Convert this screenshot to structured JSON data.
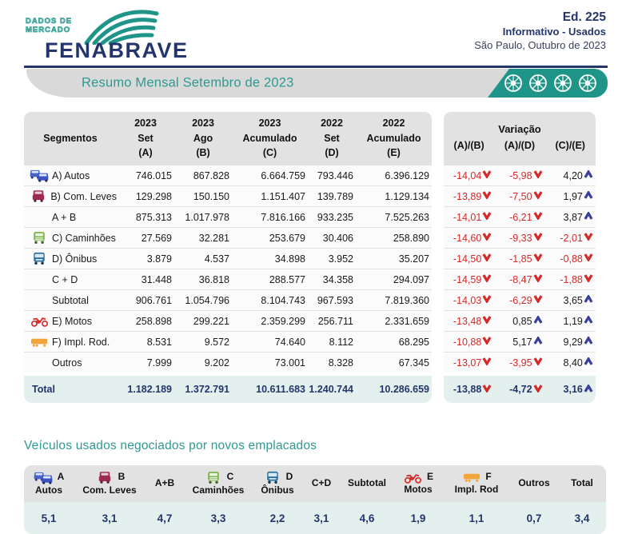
{
  "header": {
    "tagline_line1": "DADOS DE",
    "tagline_line2": "MERCADO",
    "brand": "FENABRAVE",
    "edition": "Ed. 225",
    "subtitle": "Informativo - Usados",
    "location_date": "São Paulo, Outubro de 2023"
  },
  "title_bar": {
    "title": "Resumo Mensal Setembro de 2023",
    "wheel_icons": [
      "wheel-icon",
      "wheel-icon",
      "wheel-icon",
      "wheel-icon"
    ]
  },
  "colors": {
    "navy": "#24356b",
    "teal": "#1f958a",
    "negative_red": "#d42a2a",
    "arrow_up_blue": "#3a3f9e",
    "header_grey": "#e2e2e2",
    "total_row_bg": "#e4f0ee"
  },
  "main_table": {
    "segments_header": "Segmentos",
    "columns": [
      {
        "year": "2023",
        "period": "Set",
        "key": "(A)"
      },
      {
        "year": "2023",
        "period": "Ago",
        "key": "(B)"
      },
      {
        "year": "2023",
        "period": "Acumulado",
        "key": "(C)"
      },
      {
        "year": "2022",
        "period": "Set",
        "key": "(D)"
      },
      {
        "year": "2022",
        "period": "Acumulado",
        "key": "(E)"
      }
    ],
    "rows": [
      {
        "icon": "autos-icon",
        "label": "A) Autos",
        "values": [
          "746.015",
          "867.828",
          "6.664.759",
          "793.446",
          "6.396.129"
        ]
      },
      {
        "icon": "com-leves-icon",
        "label": "B) Com. Leves",
        "values": [
          "129.298",
          "150.150",
          "1.151.407",
          "139.789",
          "1.129.134"
        ]
      },
      {
        "icon": null,
        "label": "A + B",
        "values": [
          "875.313",
          "1.017.978",
          "7.816.166",
          "933.235",
          "7.525.263"
        ]
      },
      {
        "icon": "caminhoes-icon",
        "label": "C) Caminhões",
        "values": [
          "27.569",
          "32.281",
          "253.679",
          "30.406",
          "258.890"
        ]
      },
      {
        "icon": "onibus-icon",
        "label": "D) Ônibus",
        "values": [
          "3.879",
          "4.537",
          "34.898",
          "3.952",
          "35.207"
        ]
      },
      {
        "icon": null,
        "label": "C + D",
        "values": [
          "31.448",
          "36.818",
          "288.577",
          "34.358",
          "294.097"
        ]
      },
      {
        "icon": null,
        "label": "Subtotal",
        "values": [
          "906.761",
          "1.054.796",
          "8.104.743",
          "967.593",
          "7.819.360"
        ]
      },
      {
        "icon": "motos-icon",
        "label": "E) Motos",
        "values": [
          "258.898",
          "299.221",
          "2.359.299",
          "256.711",
          "2.331.659"
        ]
      },
      {
        "icon": "impl-rod-icon",
        "label": "F) Impl. Rod.",
        "values": [
          "8.531",
          "9.572",
          "74.640",
          "8.112",
          "68.295"
        ]
      },
      {
        "icon": null,
        "label": "Outros",
        "values": [
          "7.999",
          "9.202",
          "73.001",
          "8.328",
          "67.345"
        ]
      }
    ],
    "total_row": {
      "label": "Total",
      "values": [
        "1.182.189",
        "1.372.791",
        "10.611.683",
        "1.240.744",
        "10.286.659"
      ]
    }
  },
  "variation_table": {
    "title": "Variação",
    "columns": [
      "(A)/(B)",
      "(A)/(D)",
      "(C)/(E)"
    ],
    "rows": [
      [
        {
          "value": "-14,04",
          "trend": "down"
        },
        {
          "value": "-5,98",
          "trend": "down"
        },
        {
          "value": "4,20",
          "trend": "up"
        }
      ],
      [
        {
          "value": "-13,89",
          "trend": "down"
        },
        {
          "value": "-7,50",
          "trend": "down"
        },
        {
          "value": "1,97",
          "trend": "up"
        }
      ],
      [
        {
          "value": "-14,01",
          "trend": "down"
        },
        {
          "value": "-6,21",
          "trend": "down"
        },
        {
          "value": "3,87",
          "trend": "up"
        }
      ],
      [
        {
          "value": "-14,60",
          "trend": "down"
        },
        {
          "value": "-9,33",
          "trend": "down"
        },
        {
          "value": "-2,01",
          "trend": "down"
        }
      ],
      [
        {
          "value": "-14,50",
          "trend": "down"
        },
        {
          "value": "-1,85",
          "trend": "down"
        },
        {
          "value": "-0,88",
          "trend": "down"
        }
      ],
      [
        {
          "value": "-14,59",
          "trend": "down"
        },
        {
          "value": "-8,47",
          "trend": "down"
        },
        {
          "value": "-1,88",
          "trend": "down"
        }
      ],
      [
        {
          "value": "-14,03",
          "trend": "down"
        },
        {
          "value": "-6,29",
          "trend": "down"
        },
        {
          "value": "3,65",
          "trend": "up"
        }
      ],
      [
        {
          "value": "-13,48",
          "trend": "down"
        },
        {
          "value": "0,85",
          "trend": "up"
        },
        {
          "value": "1,19",
          "trend": "up"
        }
      ],
      [
        {
          "value": "-10,88",
          "trend": "down"
        },
        {
          "value": "5,17",
          "trend": "up"
        },
        {
          "value": "9,29",
          "trend": "up"
        }
      ],
      [
        {
          "value": "-13,07",
          "trend": "down"
        },
        {
          "value": "-3,95",
          "trend": "down"
        },
        {
          "value": "8,40",
          "trend": "up"
        }
      ]
    ],
    "total_row": [
      {
        "value": "-13,88",
        "trend": "down"
      },
      {
        "value": "-4,72",
        "trend": "down"
      },
      {
        "value": "3,16",
        "trend": "up"
      }
    ]
  },
  "ratio_table": {
    "section_title": "Veículos usados negociados por novos emplacados",
    "columns": [
      {
        "icon": "autos-icon",
        "letter": "A",
        "name": "Autos",
        "value": "5,1"
      },
      {
        "icon": "com-leves-icon",
        "letter": "B",
        "name": "Com. Leves",
        "value": "3,1"
      },
      {
        "icon": null,
        "letter": null,
        "name": "A+B",
        "value": "4,7"
      },
      {
        "icon": "caminhoes-icon",
        "letter": "C",
        "name": "Caminhões",
        "value": "3,3"
      },
      {
        "icon": "onibus-icon",
        "letter": "D",
        "name": "Ônibus",
        "value": "2,2"
      },
      {
        "icon": null,
        "letter": null,
        "name": "C+D",
        "value": "3,1"
      },
      {
        "icon": null,
        "letter": null,
        "name": "Subtotal",
        "value": "4,6"
      },
      {
        "icon": "motos-icon",
        "letter": "E",
        "name": "Motos",
        "value": "1,9"
      },
      {
        "icon": "impl-rod-icon",
        "letter": "F",
        "name": "Impl. Rod",
        "value": "1,1"
      },
      {
        "icon": null,
        "letter": null,
        "name": "Outros",
        "value": "0,7"
      },
      {
        "icon": null,
        "letter": null,
        "name": "Total",
        "value": "3,4"
      }
    ]
  }
}
